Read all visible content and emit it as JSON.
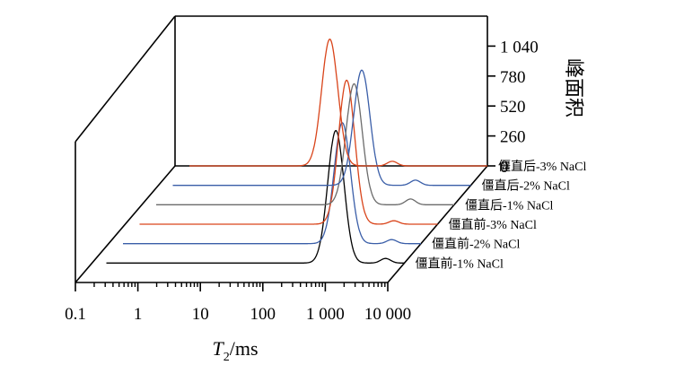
{
  "chart_data": {
    "type": "line",
    "x_axis": {
      "label_main": "T",
      "label_sub": "2",
      "label_unit": "/ms",
      "scale": "log",
      "range": [
        0.1,
        10000
      ],
      "tick_labels": [
        "0.1",
        "1",
        "10",
        "100",
        "1 000",
        "10 000"
      ],
      "tick_values": [
        0.1,
        1,
        10,
        100,
        1000,
        10000
      ]
    },
    "z_axis": {
      "label": "峰面积",
      "range": [
        0,
        1300
      ],
      "tick_labels": [
        "0",
        "260",
        "520",
        "780",
        "1 040"
      ],
      "tick_values": [
        0,
        260,
        520,
        780,
        1040
      ]
    },
    "series": [
      {
        "name": "僵直后-3% NaCl",
        "color": "#d9441a",
        "peaks": [
          {
            "center": 30,
            "width": 0.13,
            "height": 1100
          },
          {
            "center": 300,
            "width": 0.08,
            "height": 40
          }
        ]
      },
      {
        "name": "僵直后-2% NaCl",
        "color": "#3a5ea8",
        "peaks": [
          {
            "center": 180,
            "width": 0.13,
            "height": 1000
          },
          {
            "center": 1300,
            "width": 0.08,
            "height": 45
          }
        ]
      },
      {
        "name": "僵直后-1% NaCl",
        "color": "#6b6b6b",
        "peaks": [
          {
            "center": 250,
            "width": 0.13,
            "height": 1050
          },
          {
            "center": 2000,
            "width": 0.08,
            "height": 50
          }
        ]
      },
      {
        "name": "僵直前-3% NaCl",
        "color": "#d9441a",
        "peaks": [
          {
            "center": 350,
            "width": 0.13,
            "height": 1250
          },
          {
            "center": 2000,
            "width": 0.08,
            "height": 30
          }
        ]
      },
      {
        "name": "僵直前-2% NaCl",
        "color": "#3a5ea8",
        "peaks": [
          {
            "center": 550,
            "width": 0.13,
            "height": 1050
          },
          {
            "center": 3400,
            "width": 0.08,
            "height": 35
          }
        ]
      },
      {
        "name": "僵直前-1% NaCl",
        "color": "#000000",
        "peaks": [
          {
            "center": 800,
            "width": 0.13,
            "height": 1150
          },
          {
            "center": 5000,
            "width": 0.08,
            "height": 40
          }
        ]
      }
    ]
  }
}
